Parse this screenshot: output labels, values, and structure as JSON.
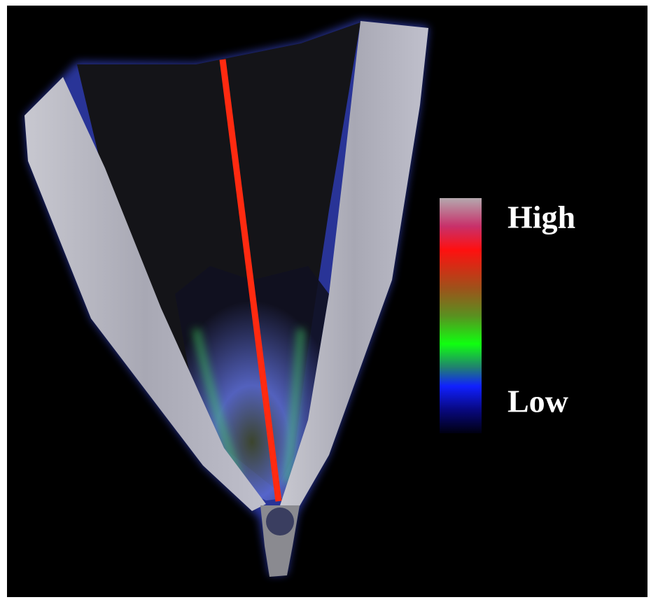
{
  "legend": {
    "high_label": "High",
    "low_label": "Low"
  }
}
